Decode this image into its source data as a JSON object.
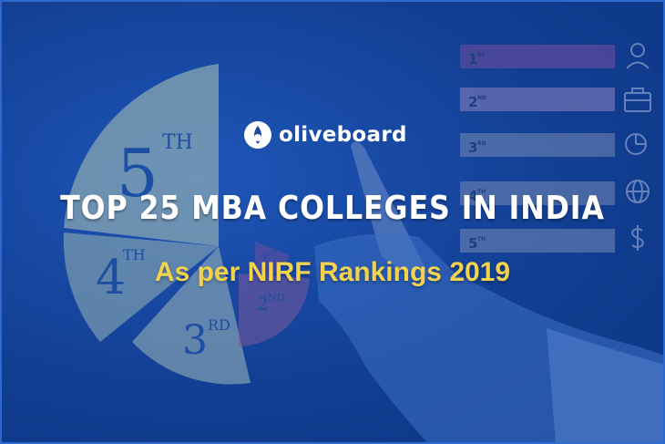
{
  "brand": {
    "name": "oliveboard"
  },
  "headline": "TOP 25 MBA COLLEGES IN INDIA",
  "subheadline": "As per NIRF Rankings 2019",
  "background": {
    "pie_labels": [
      {
        "num": "5",
        "suffix": "TH"
      },
      {
        "num": "4",
        "suffix": "TH"
      },
      {
        "num": "3",
        "suffix": "RD"
      },
      {
        "num": "2",
        "suffix": "ND"
      },
      {
        "num": "1",
        "suffix": "ST"
      }
    ],
    "rank_bars": [
      {
        "num": "1",
        "suffix": "ST"
      },
      {
        "num": "2",
        "suffix": "ND"
      },
      {
        "num": "3",
        "suffix": "RD"
      },
      {
        "num": "4",
        "suffix": "TH"
      },
      {
        "num": "5",
        "suffix": "TH"
      }
    ],
    "bar_icons": [
      "user-icon",
      "briefcase-icon",
      "pie-chart-icon",
      "globe-icon",
      "dollar-icon"
    ]
  },
  "colors": {
    "background": "#123f93",
    "headline": "#ffffff",
    "subheadline": "#f3d34e",
    "pie_primary": "#7fa6b3",
    "bar_first": "#5b4a9c",
    "bar_rest": "#7f8fb8"
  }
}
